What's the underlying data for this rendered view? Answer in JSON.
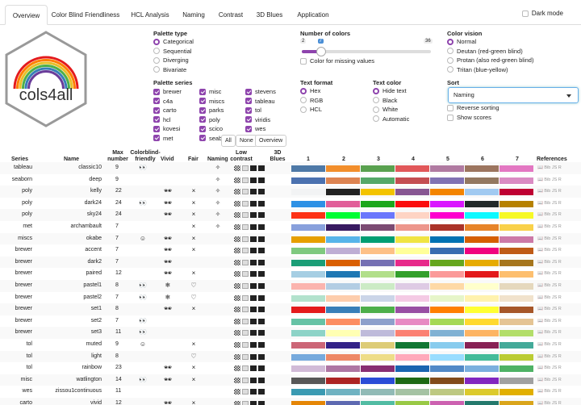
{
  "tabs": [
    "Overview",
    "Color Blind Friendliness",
    "HCL Analysis",
    "Naming",
    "Contrast",
    "3D Blues",
    "Application"
  ],
  "dark_mode_label": "Dark mode",
  "logo_text": "cols4all",
  "palette_type": {
    "label": "Palette type",
    "options": [
      "Categorical",
      "Sequential",
      "Diverging",
      "Bivariate"
    ]
  },
  "palette_series": {
    "label": "Palette series",
    "col1": [
      "brewer",
      "c4a",
      "carto",
      "hcl",
      "kovesi",
      "met"
    ],
    "col2": [
      "misc",
      "miscs",
      "parks",
      "poly",
      "scico",
      "seaborn"
    ],
    "col3": [
      "stevens",
      "tableau",
      "tol",
      "viridis",
      "wes"
    ],
    "buttons": [
      "All",
      "None",
      "Overview"
    ]
  },
  "num_colors": {
    "label": "Number of colors",
    "min": "2",
    "max": "36",
    "value": "7",
    "min_value": 2,
    "max_value": 36,
    "current": 7,
    "missing_label": "Color for missing values"
  },
  "text_format": {
    "label": "Text format",
    "options": [
      "Hex",
      "RGB",
      "HCL"
    ]
  },
  "text_color": {
    "label": "Text color",
    "options": [
      "Hide text",
      "Black",
      "White",
      "Automatic"
    ]
  },
  "color_vision": {
    "label": "Color vision",
    "options": [
      "Normal",
      "Deutan (red-green blind)",
      "Protan (also red-green blind)",
      "Tritan (blue-yellow)"
    ]
  },
  "sort": {
    "label": "Sort",
    "value": "Naming",
    "reverse_label": "Reverse sorting",
    "scores_label": "Show scores"
  },
  "table": {
    "headers": {
      "series": "Series",
      "name": "Name",
      "max": "Max number",
      "cbf": "Colorblind-friendly",
      "vivid": "Vivid",
      "fair": "Fair",
      "naming": "Naming",
      "contrast": "Low contrast",
      "blues": "3D Blues",
      "refs": "References",
      "nums": [
        "1",
        "2",
        "3",
        "4",
        "5",
        "6",
        "7"
      ]
    },
    "ref_text": "Bib JS R",
    "icon_symbols": {
      "eyes": "👀",
      "smile": "☺",
      "shades": "🕶",
      "cross": "×",
      "heart": "♡",
      "star": "✧",
      "snow": "❄"
    },
    "rows": [
      {
        "series": "tableau",
        "name": "classic10",
        "max": "9",
        "cbf": "eyes",
        "vivid": "",
        "fair": "",
        "naming": "star",
        "colors": [
          "#4e79a7",
          "#f28e2b",
          "#59a14f",
          "#e15759",
          "#b07aa1",
          "#9c755f",
          "#e377c2"
        ]
      },
      {
        "series": "seaborn",
        "name": "deep",
        "max": "9",
        "cbf": "",
        "vivid": "",
        "fair": "",
        "naming": "star",
        "colors": [
          "#4c72b0",
          "#dd8452",
          "#55a868",
          "#c44e52",
          "#8172b3",
          "#937860",
          "#da8bc3"
        ]
      },
      {
        "series": "poly",
        "name": "kelly",
        "max": "22",
        "cbf": "",
        "vivid": "shades",
        "fair": "cross",
        "naming": "star",
        "colors": [
          "#f2f3f4",
          "#222222",
          "#f3c300",
          "#875692",
          "#f38400",
          "#a1caf1",
          "#be0032"
        ]
      },
      {
        "series": "poly",
        "name": "dark24",
        "max": "24",
        "cbf": "eyes",
        "vivid": "shades",
        "fair": "cross",
        "naming": "star",
        "colors": [
          "#2e91e5",
          "#e15f99",
          "#1ca71c",
          "#fb0d0d",
          "#da16ff",
          "#222a2a",
          "#b68100"
        ]
      },
      {
        "series": "poly",
        "name": "sky24",
        "max": "24",
        "cbf": "",
        "vivid": "shades",
        "fair": "cross",
        "naming": "star",
        "colors": [
          "#fd3216",
          "#00fe35",
          "#6a76fc",
          "#fed4c4",
          "#fe00ce",
          "#0df9ff",
          "#f6f926"
        ]
      },
      {
        "series": "met",
        "name": "archambault",
        "max": "7",
        "cbf": "",
        "vivid": "",
        "fair": "cross",
        "naming": "star",
        "colors": [
          "#88a0dc",
          "#381a61",
          "#7c4b73",
          "#ed968c",
          "#ab3329",
          "#e78429",
          "#f9d14a"
        ]
      },
      {
        "series": "miscs",
        "name": "okabe",
        "max": "7",
        "cbf": "smile",
        "vivid": "shades",
        "fair": "cross",
        "naming": "",
        "colors": [
          "#e69f00",
          "#56b4e9",
          "#009e73",
          "#f0e442",
          "#0072b2",
          "#d55e00",
          "#cc79a7"
        ]
      },
      {
        "series": "brewer",
        "name": "accent",
        "max": "7",
        "cbf": "",
        "vivid": "shades",
        "fair": "cross",
        "naming": "",
        "colors": [
          "#7fc97f",
          "#beaed4",
          "#fdc086",
          "#ffff99",
          "#386cb0",
          "#f0027f",
          "#bf5b17"
        ]
      },
      {
        "series": "brewer",
        "name": "dark2",
        "max": "7",
        "cbf": "",
        "vivid": "shades",
        "fair": "",
        "naming": "",
        "colors": [
          "#1b9e77",
          "#d95f02",
          "#7570b3",
          "#e7298a",
          "#66a61e",
          "#e6ab02",
          "#a6761d"
        ]
      },
      {
        "series": "brewer",
        "name": "paired",
        "max": "12",
        "cbf": "",
        "vivid": "shades",
        "fair": "cross",
        "naming": "",
        "colors": [
          "#a6cee3",
          "#1f78b4",
          "#b2df8a",
          "#33a02c",
          "#fb9a99",
          "#e31a1c",
          "#fdbf6f"
        ]
      },
      {
        "series": "brewer",
        "name": "pastel1",
        "max": "8",
        "cbf": "eyes",
        "vivid": "snow",
        "fair": "heart",
        "naming": "",
        "colors": [
          "#fbb4ae",
          "#b3cde3",
          "#ccebc5",
          "#decbe4",
          "#fed9a6",
          "#ffffcc",
          "#e5d8bd"
        ]
      },
      {
        "series": "brewer",
        "name": "pastel2",
        "max": "7",
        "cbf": "eyes",
        "vivid": "snow",
        "fair": "heart",
        "naming": "",
        "colors": [
          "#b3e2cd",
          "#fdcdac",
          "#cbd5e8",
          "#f4cae4",
          "#e6f5c9",
          "#fff2ae",
          "#f1e2cc"
        ]
      },
      {
        "series": "brewer",
        "name": "set1",
        "max": "8",
        "cbf": "",
        "vivid": "shades",
        "fair": "cross",
        "naming": "",
        "colors": [
          "#e41a1c",
          "#377eb8",
          "#4daf4a",
          "#984ea3",
          "#ff7f00",
          "#ffff33",
          "#a65628"
        ]
      },
      {
        "series": "brewer",
        "name": "set2",
        "max": "7",
        "cbf": "eyes",
        "vivid": "",
        "fair": "",
        "naming": "",
        "colors": [
          "#66c2a5",
          "#fc8d62",
          "#8da0cb",
          "#e78ac3",
          "#a6d854",
          "#ffd92f",
          "#e5c494"
        ]
      },
      {
        "series": "brewer",
        "name": "set3",
        "max": "11",
        "cbf": "eyes",
        "vivid": "",
        "fair": "",
        "naming": "",
        "colors": [
          "#8dd3c7",
          "#ffffb3",
          "#bebada",
          "#fb8072",
          "#80b1d3",
          "#fdb462",
          "#b3de69"
        ]
      },
      {
        "series": "tol",
        "name": "muted",
        "max": "9",
        "cbf": "smile",
        "vivid": "",
        "fair": "cross",
        "naming": "",
        "colors": [
          "#cc6677",
          "#332288",
          "#ddcc77",
          "#117733",
          "#88ccee",
          "#882255",
          "#44aa99"
        ]
      },
      {
        "series": "tol",
        "name": "light",
        "max": "8",
        "cbf": "",
        "vivid": "",
        "fair": "heart",
        "naming": "",
        "colors": [
          "#77aadd",
          "#ee8866",
          "#eedd88",
          "#ffaabb",
          "#99ddff",
          "#44bb99",
          "#bbcc33"
        ]
      },
      {
        "series": "tol",
        "name": "rainbow",
        "max": "23",
        "cbf": "",
        "vivid": "shades",
        "fair": "cross",
        "naming": "",
        "colors": [
          "#d1bbd7",
          "#ae76a3",
          "#882e72",
          "#1965b0",
          "#5289c7",
          "#7bafde",
          "#4eb265"
        ]
      },
      {
        "series": "misc",
        "name": "watlington",
        "max": "14",
        "cbf": "eyes",
        "vivid": "shades",
        "fair": "cross",
        "naming": "",
        "colors": [
          "#575757",
          "#ad2323",
          "#2a4bd7",
          "#1d6914",
          "#814a19",
          "#8126c0",
          "#a0a0a0"
        ]
      },
      {
        "series": "wes",
        "name": "zissou1continuous",
        "max": "11",
        "cbf": "",
        "vivid": "",
        "fair": "",
        "naming": "",
        "colors": [
          "#3a9ab2",
          "#6fb2c1",
          "#91bab6",
          "#a5c2a3",
          "#bdc881",
          "#dcca2c",
          "#e1af00"
        ]
      },
      {
        "series": "carto",
        "name": "vivid",
        "max": "12",
        "cbf": "",
        "vivid": "shades",
        "fair": "cross",
        "naming": "",
        "colors": [
          "#e58606",
          "#5d69b1",
          "#52bca3",
          "#99c945",
          "#cc61b0",
          "#24796c",
          "#daa51b"
        ]
      }
    ]
  }
}
